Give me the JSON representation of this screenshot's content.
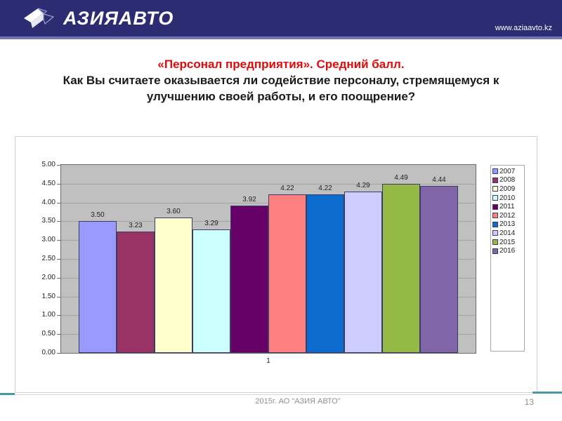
{
  "header": {
    "logo_text": "АЗИЯАВТО",
    "website": "www.aziaavto.kz"
  },
  "title": {
    "line_red": "«Персонал предприятия». Средний балл.",
    "line_black": "Как Вы считаете оказывается ли содействие персоналу, стремящемуся к улучшению своей работы, и его поощрение?"
  },
  "chart_data": {
    "type": "bar",
    "title": "",
    "categories": [
      "1"
    ],
    "series": [
      {
        "name": "2007",
        "values": [
          3.5
        ],
        "color": "#9999ff"
      },
      {
        "name": "2008",
        "values": [
          3.23
        ],
        "color": "#993366"
      },
      {
        "name": "2009",
        "values": [
          3.6
        ],
        "color": "#ffffcc"
      },
      {
        "name": "2010",
        "values": [
          3.29
        ],
        "color": "#ccffff"
      },
      {
        "name": "2011",
        "values": [
          3.92
        ],
        "color": "#660066"
      },
      {
        "name": "2012",
        "values": [
          4.22
        ],
        "color": "#ff8080"
      },
      {
        "name": "2013",
        "values": [
          4.22
        ],
        "color": "#0b6cce"
      },
      {
        "name": "2014",
        "values": [
          4.29
        ],
        "color": "#ccccff"
      },
      {
        "name": "2015",
        "values": [
          4.49
        ],
        "color": "#95b945"
      },
      {
        "name": "2016",
        "values": [
          4.44
        ],
        "color": "#8066a8"
      }
    ],
    "xlabel": "",
    "ylabel": "",
    "ylim": [
      0,
      5
    ],
    "ytick_step": 0.5,
    "grid": true,
    "plot_background": "#c0c0c0",
    "legend_position": "right",
    "data_labels": true
  },
  "footer": {
    "text": "2015г. АО \"АЗИЯ АВТО\"",
    "page_number": "13"
  },
  "colors": {
    "header_bg": "#2b2c72",
    "header_accent": "#7079ae",
    "title_red": "#e20a0a",
    "footer_teal": "#4a98a0"
  }
}
